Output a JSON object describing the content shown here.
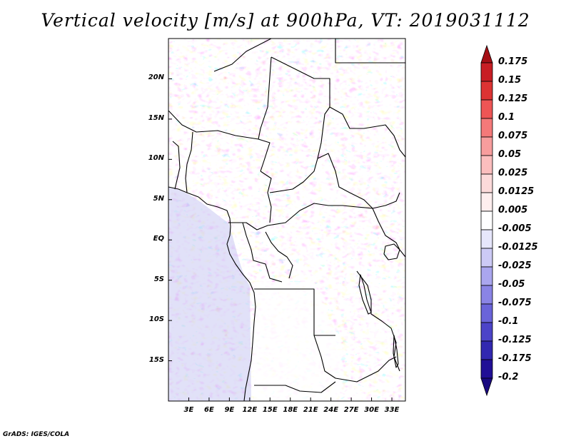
{
  "title": "Vertical velocity [m/s] at 900hPa, VT: 2019031112",
  "credit": "GrADS: IGES/COLA",
  "map": {
    "lat_ticks": [
      "20N",
      "15N",
      "10N",
      "5N",
      "EQ",
      "5S",
      "10S",
      "15S"
    ],
    "lon_ticks": [
      "3E",
      "6E",
      "9E",
      "12E",
      "15E",
      "18E",
      "21E",
      "24E",
      "27E",
      "30E",
      "33E"
    ],
    "lon_range": [
      0,
      35
    ],
    "lat_range": [
      -20,
      25
    ]
  },
  "colorbar": {
    "labels": [
      "0.175",
      "0.15",
      "0.125",
      "0.1",
      "0.075",
      "0.05",
      "0.025",
      "0.0125",
      "0.005",
      "-0.005",
      "-0.0125",
      "-0.025",
      "-0.05",
      "-0.075",
      "-0.1",
      "-0.125",
      "-0.175",
      "-0.2"
    ],
    "colors": [
      "#a50f15",
      "#c81e24",
      "#dd3333",
      "#ee5555",
      "#f47979",
      "#f79d9d",
      "#fbbebe",
      "#fcdada",
      "#feeeee",
      "#ffffff",
      "#e6e6fb",
      "#cccaf5",
      "#aaa6ee",
      "#8a84e5",
      "#6a64d9",
      "#4c44c8",
      "#3228b0",
      "#210f96",
      "#1a0a80"
    ]
  }
}
